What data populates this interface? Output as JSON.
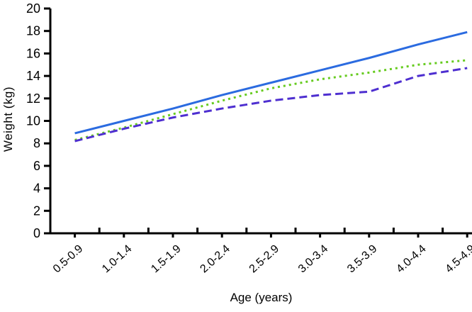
{
  "chart_data": {
    "type": "line",
    "title": "",
    "xlabel": "Age (years)",
    "ylabel": "Weight (kg)",
    "categories": [
      "0.5-0.9",
      "1.0-1.4",
      "1.5-1.9",
      "2.0-2.4",
      "2.5-2.9",
      "3.0-3.4",
      "3.5-3.9",
      "4.0-4.4",
      "4.5-4.9"
    ],
    "ytick_labels": [
      "0",
      "2",
      "4",
      "6",
      "8",
      "10",
      "12",
      "14",
      "16",
      "18",
      "20"
    ],
    "ylim": [
      0,
      20
    ],
    "ytick_step": 2,
    "grid": false,
    "legend": "none",
    "axis_color": "#000000",
    "series": [
      {
        "name": "solid-blue-line",
        "color": "#2B6BE0",
        "style": "solid",
        "values": [
          8.9,
          10.0,
          11.1,
          12.3,
          13.4,
          14.5,
          15.6,
          16.8,
          17.9
        ]
      },
      {
        "name": "dotted-green-line",
        "color": "#66CB1F",
        "style": "dotted",
        "values": [
          8.3,
          9.4,
          10.6,
          11.8,
          12.9,
          13.7,
          14.3,
          15.0,
          15.4
        ]
      },
      {
        "name": "dashed-purple-line",
        "color": "#4E2FD0",
        "style": "dashed",
        "values": [
          8.2,
          9.3,
          10.3,
          11.1,
          11.8,
          12.3,
          12.6,
          14.0,
          14.7
        ]
      }
    ]
  }
}
